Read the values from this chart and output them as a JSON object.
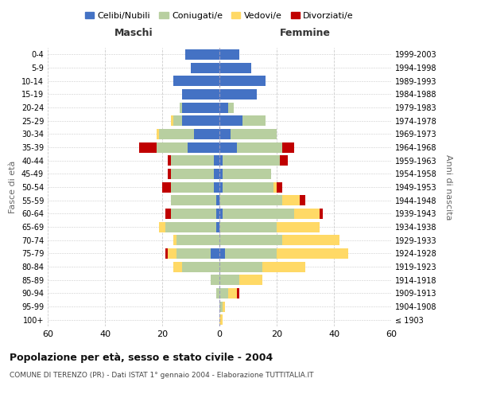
{
  "age_groups": [
    "100+",
    "95-99",
    "90-94",
    "85-89",
    "80-84",
    "75-79",
    "70-74",
    "65-69",
    "60-64",
    "55-59",
    "50-54",
    "45-49",
    "40-44",
    "35-39",
    "30-34",
    "25-29",
    "20-24",
    "15-19",
    "10-14",
    "5-9",
    "0-4"
  ],
  "birth_years": [
    "≤ 1903",
    "1904-1908",
    "1909-1913",
    "1914-1918",
    "1919-1923",
    "1924-1928",
    "1929-1933",
    "1934-1938",
    "1939-1943",
    "1944-1948",
    "1949-1953",
    "1954-1958",
    "1959-1963",
    "1964-1968",
    "1969-1973",
    "1974-1978",
    "1979-1983",
    "1984-1988",
    "1989-1993",
    "1994-1998",
    "1999-2003"
  ],
  "male": {
    "celibi": [
      0,
      0,
      0,
      0,
      0,
      3,
      0,
      1,
      1,
      1,
      2,
      2,
      2,
      11,
      9,
      13,
      13,
      13,
      16,
      10,
      12
    ],
    "coniugati": [
      0,
      0,
      1,
      3,
      13,
      12,
      15,
      18,
      16,
      16,
      15,
      15,
      15,
      11,
      12,
      3,
      1,
      0,
      0,
      0,
      0
    ],
    "vedovi": [
      0,
      0,
      0,
      0,
      3,
      3,
      1,
      2,
      0,
      0,
      0,
      0,
      0,
      0,
      1,
      1,
      0,
      0,
      0,
      0,
      0
    ],
    "divorziati": [
      0,
      0,
      0,
      0,
      0,
      1,
      0,
      0,
      2,
      0,
      3,
      1,
      1,
      6,
      0,
      0,
      0,
      0,
      0,
      0,
      0
    ]
  },
  "female": {
    "nubili": [
      0,
      0,
      0,
      0,
      0,
      2,
      0,
      0,
      1,
      0,
      1,
      1,
      1,
      6,
      4,
      8,
      3,
      13,
      16,
      11,
      7
    ],
    "coniugate": [
      0,
      1,
      3,
      7,
      15,
      18,
      22,
      20,
      25,
      22,
      18,
      17,
      20,
      16,
      16,
      8,
      2,
      0,
      0,
      0,
      0
    ],
    "vedove": [
      1,
      1,
      3,
      8,
      15,
      25,
      20,
      15,
      9,
      6,
      1,
      0,
      0,
      0,
      0,
      0,
      0,
      0,
      0,
      0,
      0
    ],
    "divorziate": [
      0,
      0,
      1,
      0,
      0,
      0,
      0,
      0,
      1,
      2,
      2,
      0,
      3,
      4,
      0,
      0,
      0,
      0,
      0,
      0,
      0
    ]
  },
  "colors": {
    "celibi": "#4472c4",
    "coniugati": "#b8cfa0",
    "vedovi": "#ffd966",
    "divorziati": "#c00000"
  },
  "title": "Popolazione per età, sesso e stato civile - 2004",
  "subtitle": "COMUNE DI TERENZO (PR) - Dati ISTAT 1° gennaio 2004 - Elaborazione TUTTITALIA.IT",
  "xlabel_left": "Maschi",
  "xlabel_right": "Femmine",
  "ylabel_left": "Fasce di età",
  "ylabel_right": "Anni di nascita",
  "xlim": 60,
  "legend_labels": [
    "Celibi/Nubili",
    "Coniugati/e",
    "Vedovi/e",
    "Divorziati/e"
  ],
  "bg_color": "#ffffff",
  "grid_color": "#cccccc"
}
